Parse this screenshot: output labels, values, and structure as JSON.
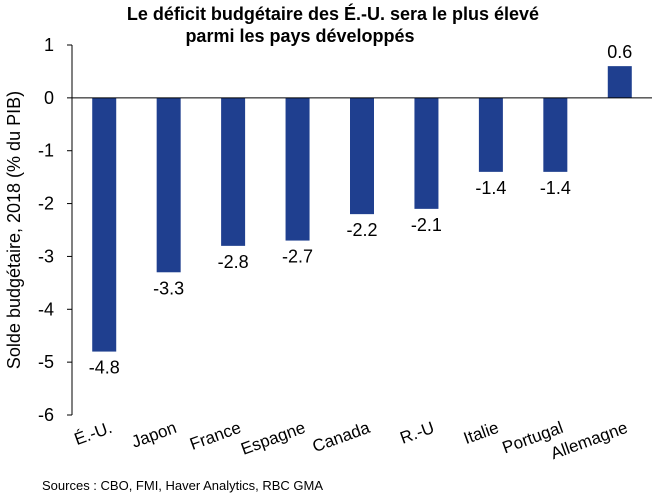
{
  "chart_data": {
    "type": "bar",
    "title": "Le déficit budgétaire des É.-U. sera le plus élevé parmi les pays développés",
    "title_lines": [
      "Le déficit budgétaire des É.-U. sera le plus élevé",
      "parmi les pays développés"
    ],
    "ylabel": "Solde budgétaire, 2018 (% du PIB)",
    "xlabel": "",
    "categories": [
      "É.-U.",
      "Japon",
      "France",
      "Espagne",
      "Canada",
      "R.-U",
      "Italie",
      "Portugal",
      "Allemagne"
    ],
    "values": [
      -4.8,
      -3.3,
      -2.8,
      -2.7,
      -2.2,
      -2.1,
      -1.4,
      -1.4,
      0.6
    ],
    "data_labels": [
      "-4.8",
      "-3.3",
      "-2.8",
      "-2.7",
      "-2.2",
      "-2.1",
      "-1.4",
      "-1.4",
      "0.6"
    ],
    "ylim": [
      -6,
      1
    ],
    "yticks": [
      1,
      0,
      -1,
      -2,
      -3,
      -4,
      -5,
      -6
    ],
    "ytick_labels": [
      "1",
      "0",
      "-1",
      "-2",
      "-3",
      "-4",
      "-5",
      "-6"
    ],
    "grid": false,
    "legend": "none",
    "bar_color": "#1f3f8f",
    "source": "Sources : CBO, FMI,  Haver Analytics, RBC GMA"
  }
}
